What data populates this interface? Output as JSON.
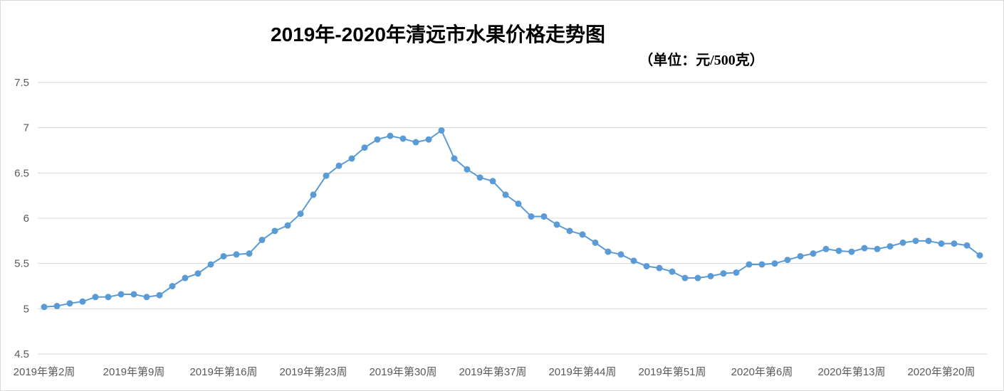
{
  "chart_data": {
    "type": "line",
    "title": "2019年-2020年清远市水果价格走势图",
    "subtitle": "（单位：元/500克）",
    "xlabel": "",
    "ylabel": "",
    "ylim": [
      4.5,
      7.5
    ],
    "y_ticks": [
      "4.5",
      "5",
      "5.5",
      "6",
      "6.5",
      "7",
      "7.5"
    ],
    "grid": true,
    "legend": "none",
    "colors": {
      "series": "#5b9bd5",
      "grid": "#d9d9d9",
      "text": "#595959"
    },
    "x_tick_labels": [
      {
        "index": 0,
        "label": "2019年第2周"
      },
      {
        "index": 7,
        "label": "2019年第9周"
      },
      {
        "index": 14,
        "label": "2019年第16周"
      },
      {
        "index": 21,
        "label": "2019年第23周"
      },
      {
        "index": 28,
        "label": "2019年第30周"
      },
      {
        "index": 35,
        "label": "2019年第37周"
      },
      {
        "index": 42,
        "label": "2019年第44周"
      },
      {
        "index": 49,
        "label": "2019年第51周"
      },
      {
        "index": 56,
        "label": "2020年第6周"
      },
      {
        "index": 63,
        "label": "2020年第13周"
      },
      {
        "index": 70,
        "label": "2020年第20周"
      }
    ],
    "series": [
      {
        "values": [
          5.02,
          5.03,
          5.06,
          5.08,
          5.13,
          5.13,
          5.16,
          5.16,
          5.13,
          5.15,
          5.25,
          5.34,
          5.39,
          5.49,
          5.58,
          5.6,
          5.61,
          5.76,
          5.86,
          5.92,
          6.05,
          6.26,
          6.47,
          6.58,
          6.66,
          6.78,
          6.87,
          6.91,
          6.88,
          6.84,
          6.87,
          6.97,
          6.66,
          6.54,
          6.45,
          6.41,
          6.26,
          6.16,
          6.02,
          6.02,
          5.93,
          5.86,
          5.82,
          5.73,
          5.63,
          5.6,
          5.53,
          5.47,
          5.45,
          5.41,
          5.34,
          5.34,
          5.36,
          5.39,
          5.4,
          5.49,
          5.49,
          5.5,
          5.54,
          5.58,
          5.61,
          5.66,
          5.64,
          5.63,
          5.67,
          5.66,
          5.69,
          5.73,
          5.75,
          5.75,
          5.72,
          5.72,
          5.7,
          5.59
        ]
      }
    ]
  }
}
